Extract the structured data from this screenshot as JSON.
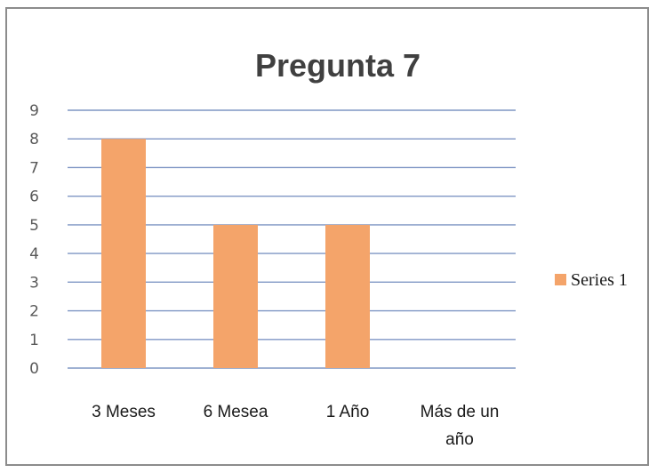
{
  "chart_data": {
    "type": "bar",
    "title": "Pregunta 7",
    "categories": [
      "3 Meses",
      "6 Mesea",
      "1 Año",
      "Más de un año"
    ],
    "series": [
      {
        "name": "Series 1",
        "values": [
          8,
          5,
          5,
          0
        ],
        "color": "#f4a46a"
      }
    ],
    "ylim": [
      0,
      9
    ],
    "yticks": [
      0,
      1,
      2,
      3,
      4,
      5,
      6,
      7,
      8,
      9
    ],
    "grid": true,
    "gridline_color": "#7f96c4",
    "legend_position": "right"
  }
}
